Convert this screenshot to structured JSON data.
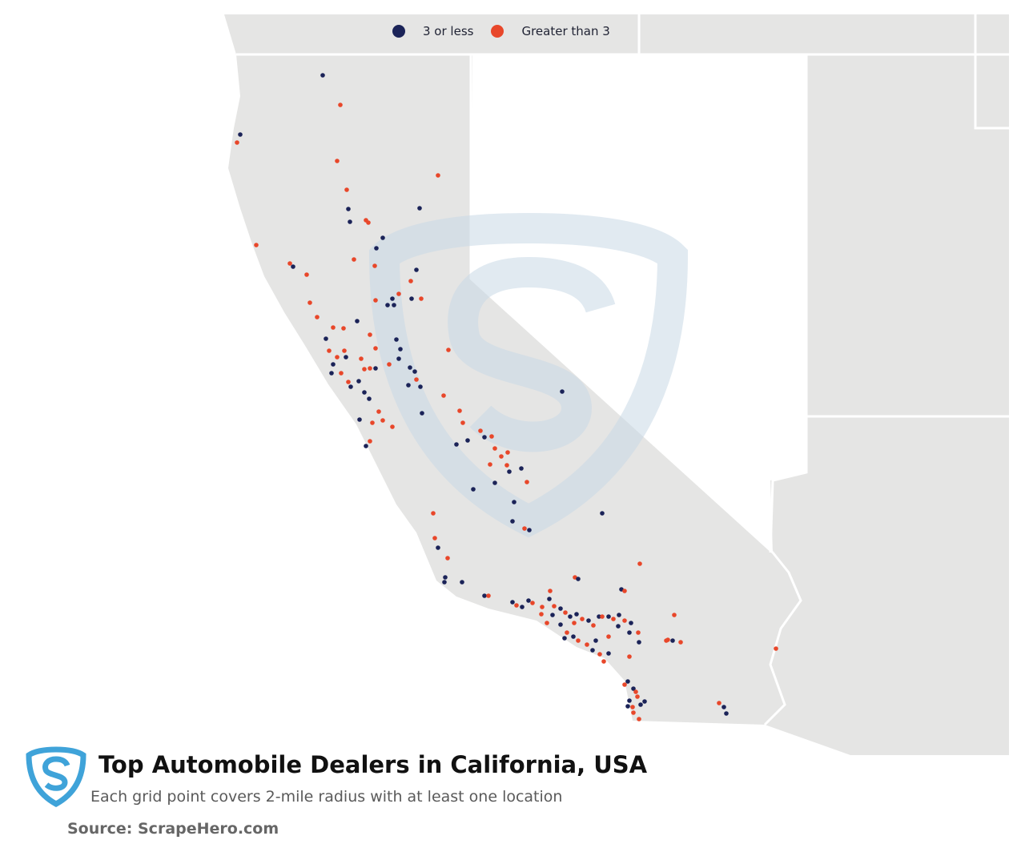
{
  "title": "Top Automobile Dealers in California, USA",
  "subtitle": "Each grid point covers 2-mile radius with at least one location",
  "source": "Source: ScrapeHero.com",
  "legend": [
    {
      "label": "3 or less",
      "color": "#1b2358"
    },
    {
      "label": "Greater than 3",
      "color": "#e8472a"
    }
  ],
  "colors": {
    "land": "#e5e5e4",
    "border": "#ffffff",
    "watermark": "#c9d9e6",
    "logo": "#3fa3d9"
  },
  "icons": {
    "logo": "scrapehero-shield-icon",
    "watermark": "scrapehero-watermark-icon"
  }
}
